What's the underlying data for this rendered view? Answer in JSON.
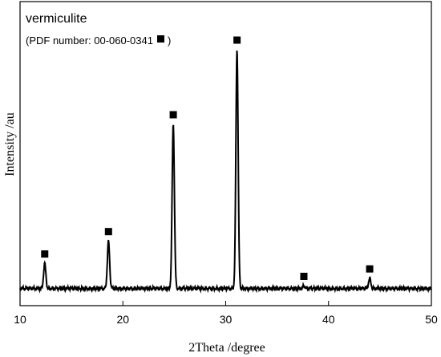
{
  "chart_data": {
    "type": "line",
    "title": "",
    "xlabel": "2Theta /degree",
    "ylabel": "Intensity /au",
    "xlim": [
      10,
      50
    ],
    "ylim": [
      0,
      1
    ],
    "xticks": [
      10,
      20,
      30,
      40,
      50
    ],
    "x_tick_labels": [
      "10",
      "20",
      "30",
      "40",
      "50"
    ],
    "y_tick_labels_shown": false,
    "grid": false,
    "legend": {
      "title": "vermiculite",
      "note_prefix": "(PDF number: 00-060-0341",
      "note_suffix": ")",
      "marker": "square",
      "placement": "top-left"
    },
    "series": [
      {
        "color": "#000000",
        "baseline": 0.04,
        "peaks": [
          {
            "x": 12.4,
            "y": 0.14
          },
          {
            "x": 18.6,
            "y": 0.23
          },
          {
            "x": 24.9,
            "y": 0.7
          },
          {
            "x": 31.1,
            "y": 1.0
          },
          {
            "x": 37.6,
            "y": 0.05
          },
          {
            "x": 44.0,
            "y": 0.08
          }
        ]
      }
    ],
    "annotations": [
      {
        "x": 12.4,
        "marker": "square"
      },
      {
        "x": 18.6,
        "marker": "square"
      },
      {
        "x": 24.9,
        "marker": "square"
      },
      {
        "x": 31.1,
        "marker": "square"
      },
      {
        "x": 37.6,
        "marker": "square"
      },
      {
        "x": 44.0,
        "marker": "square"
      }
    ]
  }
}
